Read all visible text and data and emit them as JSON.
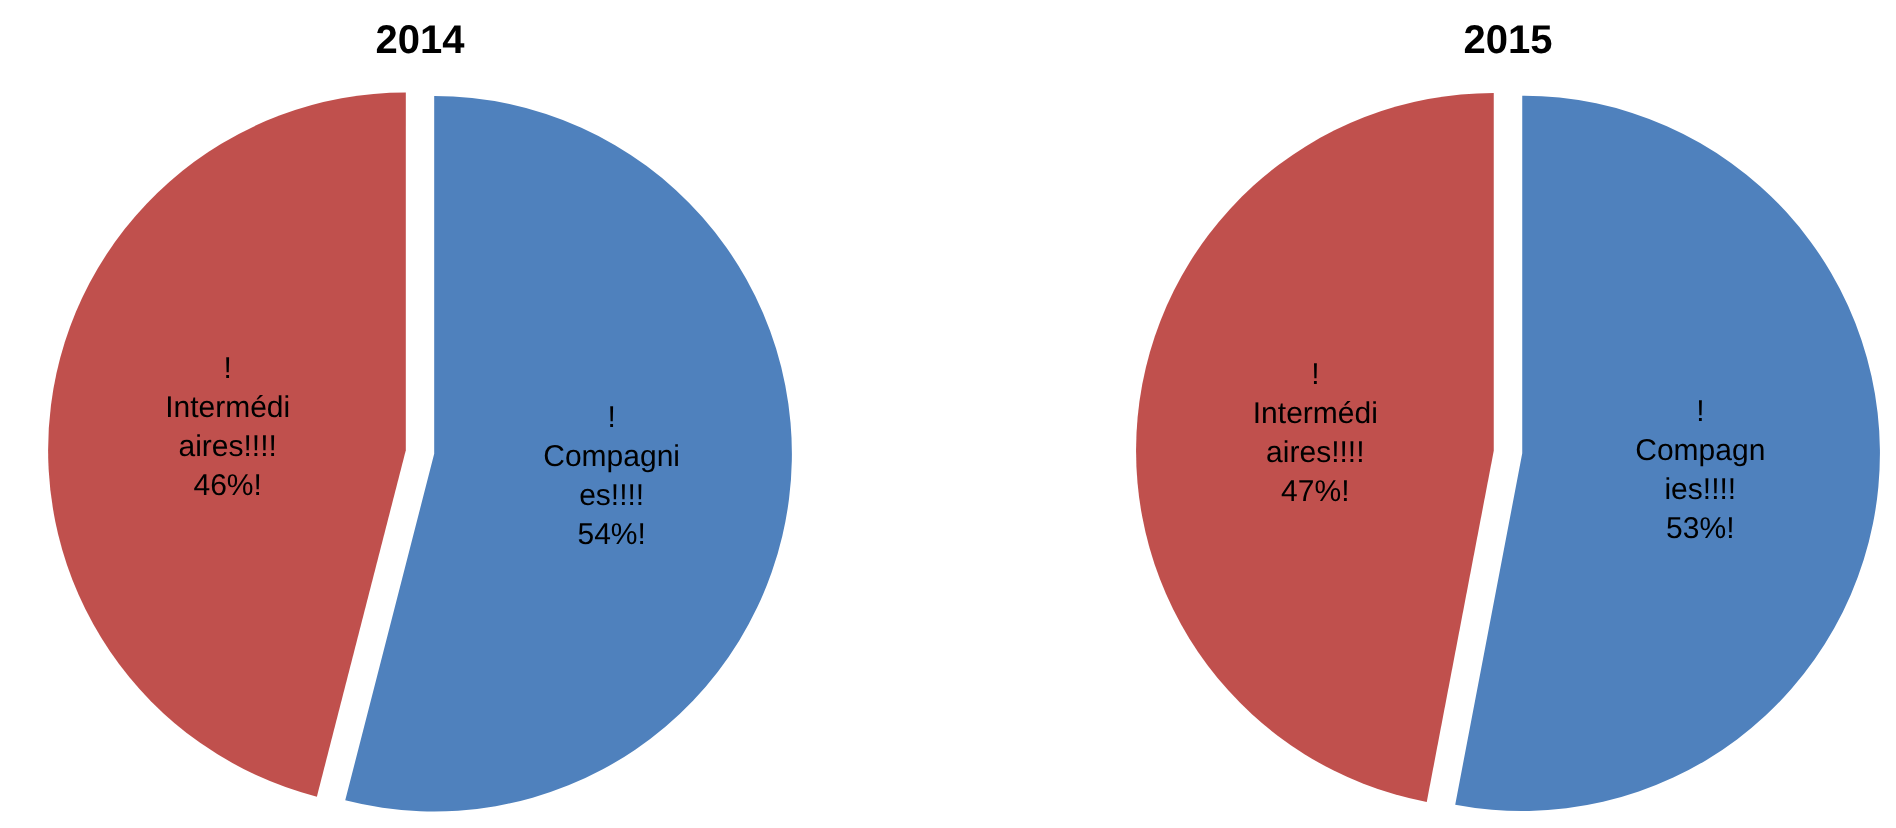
{
  "chart_data": [
    {
      "type": "pie",
      "title": "2014",
      "categories": [
        "! Compagni es!!!!",
        "! Intermédi aires!!!!"
      ],
      "values": [
        54,
        46
      ],
      "colors": [
        "#4f81bd",
        "#c0504d"
      ],
      "value_labels": [
        "54%!",
        "46%!"
      ],
      "legend": false
    },
    {
      "type": "pie",
      "title": "2015",
      "categories": [
        "! Compagn ies!!!!",
        "! Intermédi aires!!!!"
      ],
      "values": [
        53,
        47
      ],
      "colors": [
        "#4f81bd",
        "#c0504d"
      ],
      "value_labels": [
        "53%!",
        "47%!"
      ],
      "legend": false
    }
  ]
}
